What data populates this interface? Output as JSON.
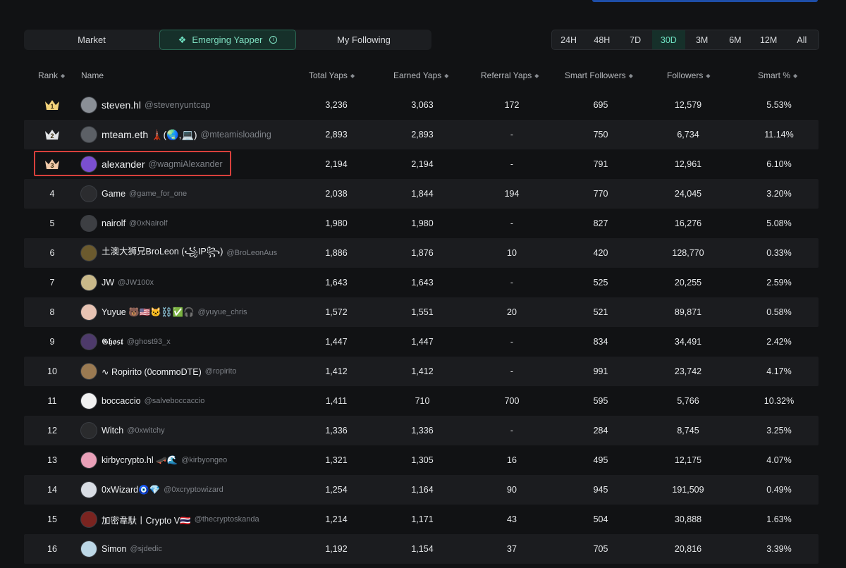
{
  "tabs": [
    {
      "label": "Market",
      "active": false
    },
    {
      "label": "Emerging Yapper",
      "active": true
    },
    {
      "label": "My Following",
      "active": false
    }
  ],
  "periods": [
    {
      "label": "24H",
      "active": false
    },
    {
      "label": "48H",
      "active": false
    },
    {
      "label": "7D",
      "active": false
    },
    {
      "label": "30D",
      "active": true
    },
    {
      "label": "3M",
      "active": false
    },
    {
      "label": "6M",
      "active": false
    },
    {
      "label": "12M",
      "active": false
    },
    {
      "label": "All",
      "active": false
    }
  ],
  "columns": {
    "rank": "Rank",
    "name": "Name",
    "total": "Total Yaps",
    "earned": "Earned Yaps",
    "referral": "Referral Yaps",
    "smart": "Smart Followers",
    "followers": "Followers",
    "smart_pct": "Smart %"
  },
  "icons": {
    "crown_colors": [
      "#f2d27a",
      "#e3e5e8",
      "#f0c9a8"
    ],
    "accent": "#6fe3c3",
    "highlight": "#d9403c"
  },
  "rows": [
    {
      "rank": "1",
      "name": "steven.hl",
      "handle": "@stevenyuntcap",
      "total": "3,236",
      "earned": "3,063",
      "referral": "172",
      "smart": "695",
      "followers": "12,579",
      "pct": "5.53%",
      "avatar": "#8a8f96"
    },
    {
      "rank": "2",
      "name": "mteam.eth 🗼(🌏,💻)",
      "handle": "@mteamisloading",
      "total": "2,893",
      "earned": "2,893",
      "referral": "-",
      "smart": "750",
      "followers": "6,734",
      "pct": "11.14%",
      "avatar": "#5c6066"
    },
    {
      "rank": "3",
      "name": "alexander",
      "handle": "@wagmiAlexander",
      "total": "2,194",
      "earned": "2,194",
      "referral": "-",
      "smart": "791",
      "followers": "12,961",
      "pct": "6.10%",
      "avatar": "#7a4fd0"
    },
    {
      "rank": "4",
      "name": "Game",
      "handle": "@game_for_one",
      "total": "2,038",
      "earned": "1,844",
      "referral": "194",
      "smart": "770",
      "followers": "24,045",
      "pct": "3.20%",
      "avatar": "#2b2c2f"
    },
    {
      "rank": "5",
      "name": "nairolf",
      "handle": "@0xNairolf",
      "total": "1,980",
      "earned": "1,980",
      "referral": "-",
      "smart": "827",
      "followers": "16,276",
      "pct": "5.08%",
      "avatar": "#3d3f43"
    },
    {
      "rank": "6",
      "name": "土澳大狮兄BroLeon (꧁IP꧂)",
      "handle": "@BroLeonAus",
      "total": "1,886",
      "earned": "1,876",
      "referral": "10",
      "smart": "420",
      "followers": "128,770",
      "pct": "0.33%",
      "avatar": "#6b5a2e"
    },
    {
      "rank": "7",
      "name": "JW",
      "handle": "@JW100x",
      "total": "1,643",
      "earned": "1,643",
      "referral": "-",
      "smart": "525",
      "followers": "20,255",
      "pct": "2.59%",
      "avatar": "#c9b98a"
    },
    {
      "rank": "8",
      "name": "Yuyue 🐻🇺🇸🐱⛓️✅🎧",
      "handle": "@yuyue_chris",
      "total": "1,572",
      "earned": "1,551",
      "referral": "20",
      "smart": "521",
      "followers": "89,871",
      "pct": "0.58%",
      "avatar": "#e7c3b3"
    },
    {
      "rank": "9",
      "name": "𝕲𝖍𝖔𝖘𝖙",
      "handle": "@ghost93_x",
      "total": "1,447",
      "earned": "1,447",
      "referral": "-",
      "smart": "834",
      "followers": "34,491",
      "pct": "2.42%",
      "avatar": "#4d3a6a"
    },
    {
      "rank": "10",
      "name": "∿ Ropirito (0commoDTE)",
      "handle": "@ropirito",
      "total": "1,412",
      "earned": "1,412",
      "referral": "-",
      "smart": "991",
      "followers": "23,742",
      "pct": "4.17%",
      "avatar": "#9a7a52"
    },
    {
      "rank": "11",
      "name": "boccaccio",
      "handle": "@salveboccaccio",
      "total": "1,411",
      "earned": "710",
      "referral": "700",
      "smart": "595",
      "followers": "5,766",
      "pct": "10.32%",
      "avatar": "#f1f1f1"
    },
    {
      "rank": "12",
      "name": "Witch",
      "handle": "@0xwitchy",
      "total": "1,336",
      "earned": "1,336",
      "referral": "-",
      "smart": "284",
      "followers": "8,745",
      "pct": "3.25%",
      "avatar": "#2a2b2d"
    },
    {
      "rank": "13",
      "name": "kirbycrypto.hl 🛹🌊",
      "handle": "@kirbyongeo",
      "total": "1,321",
      "earned": "1,305",
      "referral": "16",
      "smart": "495",
      "followers": "12,175",
      "pct": "4.07%",
      "avatar": "#e9a0b8"
    },
    {
      "rank": "14",
      "name": "0xWizard🧿💎",
      "handle": "@0xcryptowizard",
      "total": "1,254",
      "earned": "1,164",
      "referral": "90",
      "smart": "945",
      "followers": "191,509",
      "pct": "0.49%",
      "avatar": "#d9dde4"
    },
    {
      "rank": "15",
      "name": "加密韋馱丨Crypto V🇹🇭",
      "handle": "@thecryptoskanda",
      "total": "1,214",
      "earned": "1,171",
      "referral": "43",
      "smart": "504",
      "followers": "30,888",
      "pct": "1.63%",
      "avatar": "#7a2420"
    },
    {
      "rank": "16",
      "name": "Simon",
      "handle": "@sjdedic",
      "total": "1,192",
      "earned": "1,154",
      "referral": "37",
      "smart": "705",
      "followers": "20,816",
      "pct": "3.39%",
      "avatar": "#bcd7e6"
    }
  ]
}
